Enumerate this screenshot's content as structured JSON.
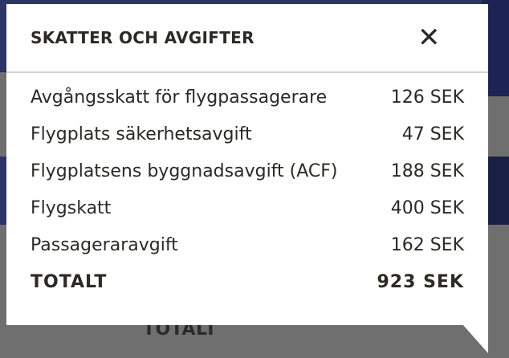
{
  "background": {
    "total_label": "TOTALT"
  },
  "popup": {
    "title": "SKATTER OCH AVGIFTER",
    "close_icon": "close-x-icon",
    "items": [
      {
        "label": "Avgångsskatt för flygpassagerare",
        "amount": "126 SEK"
      },
      {
        "label": "Flygplats säkerhetsavgift",
        "amount": "47 SEK"
      },
      {
        "label": "Flygplatsens byggnadsavgift (ACF)",
        "amount": "188 SEK"
      },
      {
        "label": "Flygskatt",
        "amount": "400 SEK"
      },
      {
        "label": "Passageraravgift",
        "amount": "162 SEK"
      }
    ],
    "total": {
      "label": "TOTALT",
      "amount": "923 SEK"
    }
  }
}
